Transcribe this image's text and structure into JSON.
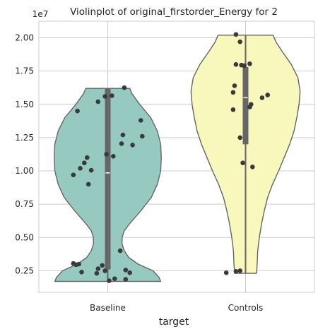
{
  "chart_data": {
    "type": "violin",
    "title": "Violinplot of original_firstorder_Energy for 2",
    "xlabel": "target",
    "ylabel": "",
    "offset_text": "1e7",
    "scale": 10000000,
    "ylim": [
      875000,
      21250000
    ],
    "yticks": [
      2500000,
      5000000,
      7500000,
      10000000,
      12500000,
      15000000,
      17500000,
      20000000
    ],
    "ytick_labels": [
      "0.25",
      "0.50",
      "0.75",
      "1.00",
      "1.25",
      "1.50",
      "1.75",
      "2.00"
    ],
    "grid": true,
    "categories": [
      "Baseline",
      "Controls"
    ],
    "series": [
      {
        "name": "Baseline",
        "color": "#96cac1",
        "quartiles": [
          2600000,
          9850000,
          16200000
        ],
        "median": 9850000,
        "range": [
          1700000,
          16200000
        ],
        "profile": [
          [
            1700000,
            0.96
          ],
          [
            2000000,
            0.93
          ],
          [
            2500000,
            0.82
          ],
          [
            3000000,
            0.55
          ],
          [
            3500000,
            0.38
          ],
          [
            4000000,
            0.3
          ],
          [
            4500000,
            0.26
          ],
          [
            5000000,
            0.26
          ],
          [
            5500000,
            0.3
          ],
          [
            6000000,
            0.39
          ],
          [
            7000000,
            0.6
          ],
          [
            8000000,
            0.79
          ],
          [
            9000000,
            0.9
          ],
          [
            10000000,
            0.96
          ],
          [
            11000000,
            0.97
          ],
          [
            12000000,
            0.96
          ],
          [
            13000000,
            0.9
          ],
          [
            14000000,
            0.78
          ],
          [
            15000000,
            0.58
          ],
          [
            15800000,
            0.44
          ],
          [
            16200000,
            0.4
          ]
        ],
        "points": [
          {
            "y": 16250000,
            "dx": 0.12
          },
          {
            "y": 15650000,
            "dx": 0.03
          },
          {
            "y": 15600000,
            "dx": -0.02
          },
          {
            "y": 15200000,
            "dx": -0.07
          },
          {
            "y": 14500000,
            "dx": -0.22
          },
          {
            "y": 13800000,
            "dx": 0.24
          },
          {
            "y": 12700000,
            "dx": 0.11
          },
          {
            "y": 12600000,
            "dx": 0.25
          },
          {
            "y": 12050000,
            "dx": 0.1
          },
          {
            "y": 11950000,
            "dx": 0.18
          },
          {
            "y": 11250000,
            "dx": -0.01
          },
          {
            "y": 11100000,
            "dx": 0.04
          },
          {
            "y": 11000000,
            "dx": -0.15
          },
          {
            "y": 10600000,
            "dx": -0.17
          },
          {
            "y": 10200000,
            "dx": -0.2
          },
          {
            "y": 10050000,
            "dx": -0.12
          },
          {
            "y": 9700000,
            "dx": -0.25
          },
          {
            "y": 9000000,
            "dx": -0.14
          },
          {
            "y": 4000000,
            "dx": 0.09
          },
          {
            "y": 3050000,
            "dx": -0.25
          },
          {
            "y": 3000000,
            "dx": -0.21
          },
          {
            "y": 2950000,
            "dx": -0.23
          },
          {
            "y": 2900000,
            "dx": -0.04
          },
          {
            "y": 2650000,
            "dx": -0.07
          },
          {
            "y": 2550000,
            "dx": 0.13
          },
          {
            "y": 2500000,
            "dx": -0.02
          },
          {
            "y": 2400000,
            "dx": -0.19
          },
          {
            "y": 2350000,
            "dx": 0.16
          },
          {
            "y": 2300000,
            "dx": -0.08
          },
          {
            "y": 1900000,
            "dx": 0.05
          },
          {
            "y": 1850000,
            "dx": 0.13
          },
          {
            "y": 1750000,
            "dx": 0.01
          }
        ]
      },
      {
        "name": "Controls",
        "color": "#f8f7bc",
        "quartiles": [
          12000000,
          15500000,
          17800000
        ],
        "median": 15500000,
        "range": [
          2300000,
          20200000
        ],
        "profile": [
          [
            2300000,
            0.2
          ],
          [
            3000000,
            0.21
          ],
          [
            4000000,
            0.22
          ],
          [
            5000000,
            0.25
          ],
          [
            6000000,
            0.29
          ],
          [
            7000000,
            0.34
          ],
          [
            8000000,
            0.4
          ],
          [
            9000000,
            0.49
          ],
          [
            10000000,
            0.6
          ],
          [
            11000000,
            0.7
          ],
          [
            12000000,
            0.8
          ],
          [
            13000000,
            0.88
          ],
          [
            14000000,
            0.93
          ],
          [
            15000000,
            0.97
          ],
          [
            16000000,
            0.99
          ],
          [
            17000000,
            0.95
          ],
          [
            18000000,
            0.83
          ],
          [
            19000000,
            0.66
          ],
          [
            19700000,
            0.55
          ],
          [
            20200000,
            0.5
          ]
        ],
        "points": [
          {
            "y": 20250000,
            "dx": -0.07
          },
          {
            "y": 19700000,
            "dx": -0.04
          },
          {
            "y": 18050000,
            "dx": 0.03
          },
          {
            "y": 18000000,
            "dx": -0.07
          },
          {
            "y": 17950000,
            "dx": -0.03
          },
          {
            "y": 17900000,
            "dx": -0.01
          },
          {
            "y": 16400000,
            "dx": -0.08
          },
          {
            "y": 15900000,
            "dx": -0.09
          },
          {
            "y": 15700000,
            "dx": 0.16
          },
          {
            "y": 15500000,
            "dx": 0.12
          },
          {
            "y": 15000000,
            "dx": 0.04
          },
          {
            "y": 14800000,
            "dx": 0.03
          },
          {
            "y": 14600000,
            "dx": -0.09
          },
          {
            "y": 12500000,
            "dx": -0.04
          },
          {
            "y": 10600000,
            "dx": -0.02
          },
          {
            "y": 10300000,
            "dx": 0.05
          },
          {
            "y": 2500000,
            "dx": -0.04
          },
          {
            "y": 2450000,
            "dx": -0.07
          },
          {
            "y": 2350000,
            "dx": -0.14
          }
        ]
      }
    ]
  }
}
